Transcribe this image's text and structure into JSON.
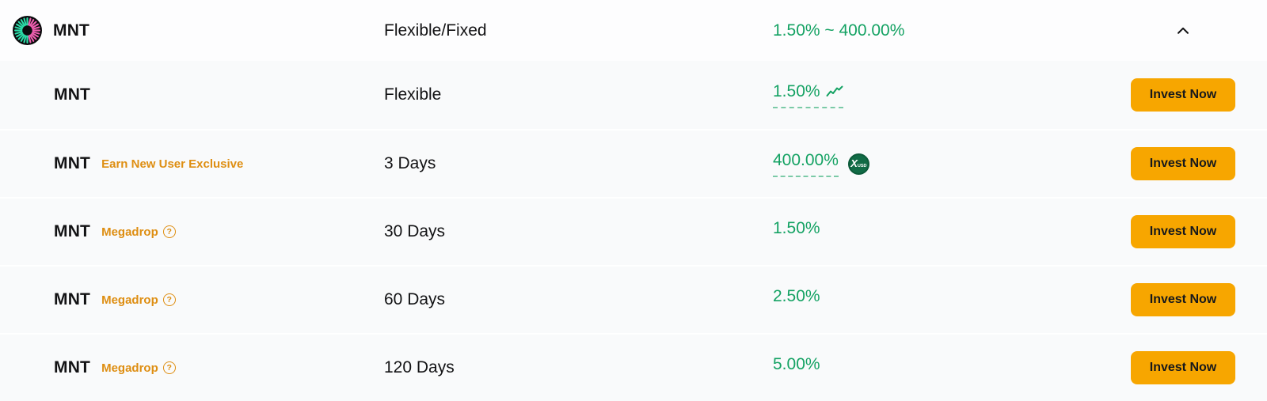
{
  "group_header": {
    "asset": "MNT",
    "product_type": "Flexible/Fixed",
    "apr_range": "1.50% ~ 400.00%",
    "collapse_icon": "chevron-up"
  },
  "rows": [
    {
      "asset": "MNT",
      "tag": "",
      "tag_help": false,
      "duration": "Flexible",
      "rate": "1.50%",
      "trend_icon": true,
      "rate_underlined": true,
      "badge": "",
      "cta": "Invest Now"
    },
    {
      "asset": "MNT",
      "tag": "Earn New User Exclusive",
      "tag_help": false,
      "duration": "3 Days",
      "rate": "400.00%",
      "trend_icon": false,
      "rate_underlined": true,
      "badge": "XUSD",
      "cta": "Invest Now"
    },
    {
      "asset": "MNT",
      "tag": "Megadrop",
      "tag_help": true,
      "duration": "30 Days",
      "rate": "1.50%",
      "trend_icon": false,
      "rate_underlined": false,
      "badge": "",
      "cta": "Invest Now"
    },
    {
      "asset": "MNT",
      "tag": "Megadrop",
      "tag_help": true,
      "duration": "60 Days",
      "rate": "2.50%",
      "trend_icon": false,
      "rate_underlined": false,
      "badge": "",
      "cta": "Invest Now"
    },
    {
      "asset": "MNT",
      "tag": "Megadrop",
      "tag_help": true,
      "duration": "120 Days",
      "rate": "5.00%",
      "trend_icon": false,
      "rate_underlined": false,
      "badge": "",
      "cta": "Invest Now"
    }
  ],
  "colors": {
    "accent_orange": "#F7A600",
    "tag_orange": "#DE8E12",
    "positive_green": "#14A263",
    "badge_green": "#116B46",
    "text_primary": "#121214",
    "row_bg": "#F9FAFB",
    "header_bg": "#FDFDFE"
  },
  "icons": {
    "asset_logo": "mnt-logo",
    "collapse": "chevron-up-icon",
    "trend": "trend-up-icon",
    "help": "question-mark-icon",
    "bonus_badge": "xusd-coin-icon"
  }
}
